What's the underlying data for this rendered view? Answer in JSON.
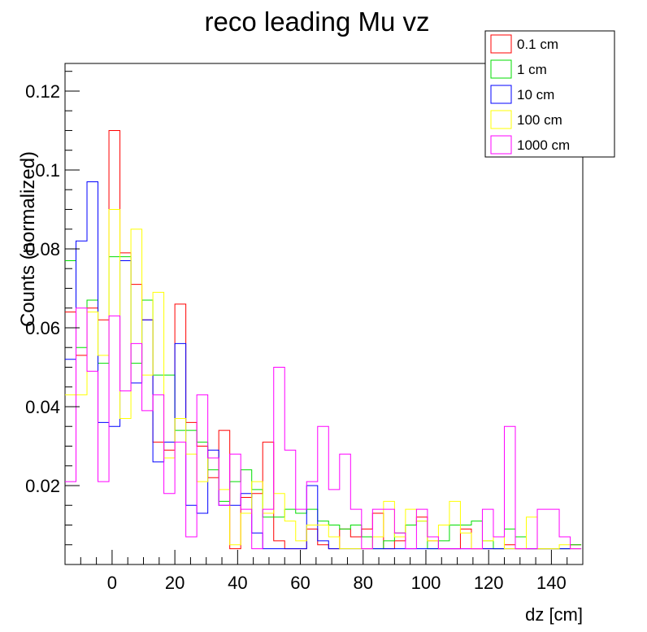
{
  "chart_data": {
    "type": "histogram-step",
    "title": "reco leading Mu vz",
    "xlabel": "dz [cm]",
    "ylabel": "Counts (normalized)",
    "xlim": [
      -15,
      150
    ],
    "ylim": [
      0,
      0.127
    ],
    "bin_width": 3.5,
    "x_ticks": [
      0,
      20,
      40,
      60,
      80,
      100,
      120,
      140
    ],
    "y_ticks": [
      0.02,
      0.04,
      0.06,
      0.08,
      0.1,
      0.12
    ],
    "x_tick_labels": [
      "0",
      "20",
      "40",
      "60",
      "80",
      "100",
      "120",
      "140"
    ],
    "y_tick_labels": [
      "0.02",
      "0.04",
      "0.06",
      "0.08",
      "0.1",
      "0.12"
    ],
    "legend_position": "top-right",
    "series": [
      {
        "name": "0.1 cm",
        "color": "#ff0000",
        "values": [
          0.064,
          0.053,
          0.065,
          0.062,
          0.11,
          0.079,
          0.071,
          0.062,
          0.031,
          0.029,
          0.066,
          0.036,
          0.03,
          0.022,
          0.034,
          0.004,
          0.017,
          0.018,
          0.031,
          0.006,
          0.004,
          0.004,
          0.009,
          0.005,
          0.004,
          0.009,
          0.007,
          0.009,
          0.013,
          0.004,
          0.006,
          0.01,
          0.012,
          0.006,
          0.004,
          0.004,
          0.009,
          0.004,
          0.004,
          0.004,
          0.005,
          0.004,
          0.004,
          0.004,
          0.004,
          0.004,
          0.005
        ]
      },
      {
        "name": "1 cm",
        "color": "#00dd00",
        "values": [
          0.077,
          0.055,
          0.067,
          0.051,
          0.078,
          0.078,
          0.051,
          0.067,
          0.048,
          0.048,
          0.034,
          0.034,
          0.031,
          0.024,
          0.016,
          0.021,
          0.024,
          0.019,
          0.012,
          0.012,
          0.014,
          0.013,
          0.014,
          0.011,
          0.01,
          0.009,
          0.01,
          0.007,
          0.004,
          0.006,
          0.008,
          0.01,
          0.011,
          0.004,
          0.006,
          0.01,
          0.01,
          0.011,
          0.006,
          0.004,
          0.009,
          0.007,
          0.004,
          0.004,
          0.004,
          0.004,
          0.005
        ]
      },
      {
        "name": "10 cm",
        "color": "#0000ff",
        "values": [
          0.052,
          0.082,
          0.097,
          0.036,
          0.035,
          0.077,
          0.046,
          0.062,
          0.026,
          0.031,
          0.056,
          0.015,
          0.013,
          0.029,
          0.015,
          0.015,
          0.018,
          0.008,
          0.004,
          0.004,
          0.004,
          0.004,
          0.02,
          0.006,
          0.004,
          0.004,
          0.004,
          0.004,
          0.004,
          0.004,
          0.004,
          0.004,
          0.004,
          0.004,
          0.004,
          0.004,
          0.004,
          0.004,
          0.004,
          0.004,
          0.004,
          0.004,
          0.004,
          0.004,
          0.004,
          0.004,
          0.004
        ]
      },
      {
        "name": "100 cm",
        "color": "#ffff00",
        "values": [
          0.043,
          0.043,
          0.064,
          0.053,
          0.09,
          0.037,
          0.085,
          0.048,
          0.069,
          0.027,
          0.037,
          0.028,
          0.021,
          0.027,
          0.019,
          0.005,
          0.013,
          0.021,
          0.013,
          0.018,
          0.011,
          0.006,
          0.01,
          0.01,
          0.007,
          0.004,
          0.004,
          0.004,
          0.007,
          0.016,
          0.007,
          0.014,
          0.011,
          0.006,
          0.01,
          0.016,
          0.008,
          0.004,
          0.006,
          0.007,
          0.004,
          0.004,
          0.012,
          0.004,
          0.004,
          0.005,
          0.004
        ]
      },
      {
        "name": "1000 cm",
        "color": "#ff00ff",
        "values": [
          0.021,
          0.065,
          0.049,
          0.021,
          0.063,
          0.044,
          0.056,
          0.039,
          0.043,
          0.018,
          0.031,
          0.007,
          0.043,
          0.027,
          0.015,
          0.028,
          0.014,
          0.004,
          0.014,
          0.05,
          0.029,
          0.014,
          0.021,
          0.035,
          0.019,
          0.028,
          0.014,
          0.004,
          0.014,
          0.014,
          0.008,
          0.004,
          0.014,
          0.007,
          0.004,
          0.004,
          0.004,
          0.004,
          0.014,
          0.007,
          0.035,
          0.004,
          0.004,
          0.014,
          0.014,
          0.007,
          0.004
        ]
      }
    ]
  }
}
